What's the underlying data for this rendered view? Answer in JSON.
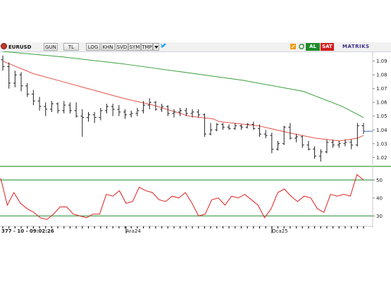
{
  "toolbar": {
    "symbol": "EURUSD",
    "buttons": [
      "GUN",
      "TL",
      "LOG",
      "KHN",
      "SVD",
      "SYM",
      "TMP"
    ],
    "buy_label": "AL",
    "sell_label": "SAT",
    "brand": "MATRIKS",
    "colors": {
      "buy": "#1e8b2a",
      "sell": "#d21d1d",
      "brand": "#3a2f8a"
    },
    "icons": [
      "dropdown-icon",
      "twitter-bird-icon",
      "pencil-icon",
      "refresh-icon"
    ]
  },
  "status": {
    "info": "377 - 10 - 09:02:26",
    "dates": [
      "Ara24",
      "Oca25"
    ]
  },
  "chart_data": [
    {
      "type": "ohlc",
      "ylabels": [
        "1.09",
        "1.08",
        "1.07",
        "1.06",
        "1.05",
        "1.04",
        "1.03",
        "1.02"
      ],
      "ylim": [
        1.014,
        1.097
      ],
      "bars": [
        [
          1.091,
          1.094,
          1.083,
          1.086
        ],
        [
          1.086,
          1.089,
          1.07,
          1.074
        ],
        [
          1.074,
          1.083,
          1.071,
          1.08
        ],
        [
          1.08,
          1.082,
          1.068,
          1.072
        ],
        [
          1.072,
          1.074,
          1.064,
          1.066
        ],
        [
          1.066,
          1.069,
          1.058,
          1.061
        ],
        [
          1.061,
          1.064,
          1.054,
          1.057
        ],
        [
          1.057,
          1.06,
          1.05,
          1.055
        ],
        [
          1.055,
          1.061,
          1.053,
          1.059
        ],
        [
          1.059,
          1.06,
          1.052,
          1.054
        ],
        [
          1.054,
          1.061,
          1.052,
          1.058
        ],
        [
          1.058,
          1.06,
          1.052,
          1.054
        ],
        [
          1.054,
          1.06,
          1.049,
          1.05
        ],
        [
          1.05,
          1.055,
          1.035,
          1.049
        ],
        [
          1.049,
          1.053,
          1.046,
          1.051
        ],
        [
          1.051,
          1.053,
          1.045,
          1.049
        ],
        [
          1.049,
          1.056,
          1.047,
          1.054
        ],
        [
          1.054,
          1.059,
          1.052,
          1.057
        ],
        [
          1.057,
          1.059,
          1.05,
          1.055
        ],
        [
          1.055,
          1.058,
          1.05,
          1.053
        ],
        [
          1.053,
          1.055,
          1.048,
          1.051
        ],
        [
          1.051,
          1.054,
          1.049,
          1.052
        ],
        [
          1.052,
          1.056,
          1.05,
          1.054
        ],
        [
          1.054,
          1.061,
          1.052,
          1.058
        ],
        [
          1.058,
          1.063,
          1.055,
          1.06
        ],
        [
          1.06,
          1.061,
          1.054,
          1.055
        ],
        [
          1.055,
          1.059,
          1.053,
          1.057
        ],
        [
          1.057,
          1.058,
          1.05,
          1.052
        ],
        [
          1.052,
          1.055,
          1.049,
          1.053
        ],
        [
          1.053,
          1.056,
          1.05,
          1.054
        ],
        [
          1.054,
          1.056,
          1.05,
          1.052
        ],
        [
          1.052,
          1.055,
          1.049,
          1.053
        ],
        [
          1.053,
          1.055,
          1.049,
          1.051
        ],
        [
          1.051,
          1.052,
          1.035,
          1.037
        ],
        [
          1.037,
          1.045,
          1.036,
          1.04
        ],
        [
          1.04,
          1.045,
          1.039,
          1.044
        ],
        [
          1.044,
          1.045,
          1.04,
          1.042
        ],
        [
          1.042,
          1.044,
          1.04,
          1.041
        ],
        [
          1.041,
          1.045,
          1.04,
          1.043
        ],
        [
          1.043,
          1.044,
          1.04,
          1.042
        ],
        [
          1.042,
          1.045,
          1.041,
          1.044
        ],
        [
          1.044,
          1.046,
          1.04,
          1.041
        ],
        [
          1.041,
          1.044,
          1.035,
          1.037
        ],
        [
          1.037,
          1.04,
          1.034,
          1.036
        ],
        [
          1.036,
          1.038,
          1.023,
          1.026
        ],
        [
          1.026,
          1.032,
          1.025,
          1.03
        ],
        [
          1.03,
          1.043,
          1.029,
          1.042
        ],
        [
          1.042,
          1.045,
          1.033,
          1.034
        ],
        [
          1.034,
          1.037,
          1.031,
          1.035
        ],
        [
          1.035,
          1.036,
          1.027,
          1.029
        ],
        [
          1.029,
          1.032,
          1.025,
          1.026
        ],
        [
          1.026,
          1.028,
          1.019,
          1.021
        ],
        [
          1.021,
          1.026,
          1.017,
          1.024
        ],
        [
          1.024,
          1.033,
          1.023,
          1.031
        ],
        [
          1.031,
          1.033,
          1.027,
          1.029
        ],
        [
          1.029,
          1.032,
          1.027,
          1.03
        ],
        [
          1.03,
          1.033,
          1.028,
          1.031
        ],
        [
          1.031,
          1.033,
          1.026,
          1.029
        ],
        [
          1.029,
          1.045,
          1.028,
          1.043
        ],
        [
          1.043,
          1.045,
          1.037,
          1.039
        ]
      ],
      "ma_short": [
        [
          0,
          1.09
        ],
        [
          10,
          1.081
        ],
        [
          20,
          1.075
        ],
        [
          30,
          1.069
        ],
        [
          40,
          1.063
        ],
        [
          50,
          1.058
        ],
        [
          59,
          1.052
        ],
        [
          62,
          1.05
        ],
        [
          70,
          1.048
        ],
        [
          72,
          1.046
        ],
        [
          85,
          1.043
        ],
        [
          95,
          1.038
        ],
        [
          104,
          1.034
        ],
        [
          112,
          1.032
        ],
        [
          118,
          1.034
        ],
        [
          120,
          1.036
        ]
      ],
      "ma_long": [
        [
          0,
          1.097
        ],
        [
          20,
          1.093
        ],
        [
          40,
          1.088
        ],
        [
          60,
          1.082
        ],
        [
          80,
          1.076
        ],
        [
          100,
          1.068
        ],
        [
          113,
          1.057
        ],
        [
          120,
          1.049
        ]
      ],
      "colors": {
        "bars": "#222222",
        "ma_short": "#e8524a",
        "ma_long": "#3aa03a"
      }
    },
    {
      "type": "line",
      "ylabels": [
        "50",
        "40",
        "30"
      ],
      "ylim": [
        25,
        56
      ],
      "levels": [
        30,
        50
      ],
      "values": [
        51,
        36,
        43,
        37,
        34,
        32,
        29,
        28,
        31,
        35,
        35,
        31,
        30,
        29,
        31,
        31,
        42,
        41,
        44,
        37,
        38,
        46,
        44,
        43,
        39,
        38,
        41,
        40,
        43,
        37,
        30,
        31,
        39,
        40,
        36,
        41,
        40,
        42,
        39,
        36,
        29,
        34,
        43,
        45,
        41,
        38,
        41,
        40,
        34,
        32,
        42,
        41,
        42,
        41,
        53,
        50
      ],
      "colors": {
        "line": "#e02020",
        "levels": "#1e8b2a"
      }
    }
  ]
}
